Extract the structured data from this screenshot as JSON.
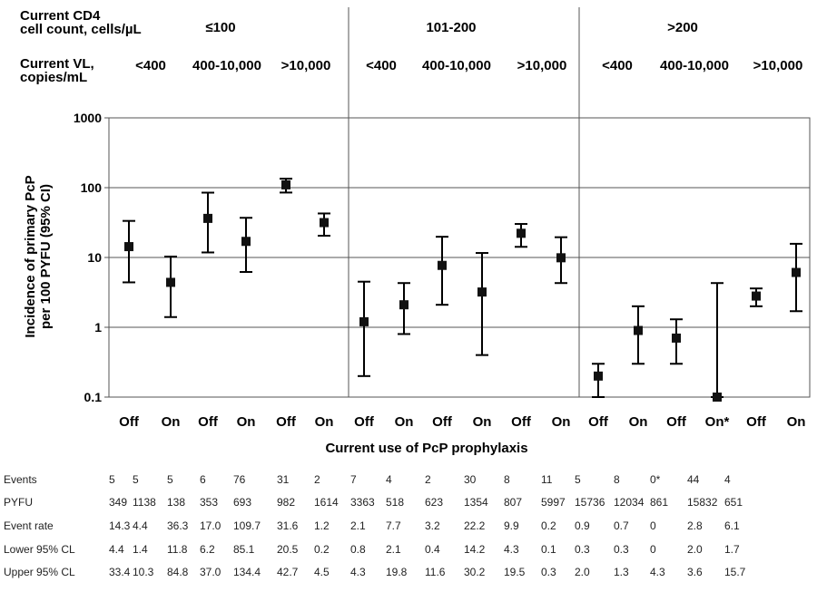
{
  "headers": {
    "cd4_label_line1": "Current CD4",
    "cd4_label_line2": "cell count, cells/µL",
    "vl_label_line1": "Current VL,",
    "vl_label_line2": "copies/mL",
    "cd4_groups": [
      "≤100",
      "101-200",
      ">200"
    ],
    "vl_groups": [
      "<400",
      "400-10,000",
      ">10,000",
      "<400",
      "400-10,000",
      ">10,000",
      "<400",
      "400-10,000",
      ">10,000"
    ]
  },
  "chart_data": {
    "type": "scatter",
    "title": "",
    "ylabel_line1": "Incidence of primary PcP",
    "ylabel_line2": "per 100 PYFU (95% CI)",
    "xlabel": "Current use of PcP prophylaxis",
    "yscale": "log",
    "ylim": [
      0.1,
      1000
    ],
    "yticks": [
      "1000",
      "100",
      "10",
      "1",
      "0.1"
    ],
    "ytick_values": [
      1000,
      100,
      10,
      1,
      0.1
    ],
    "grid": true,
    "categories": [
      "Off",
      "On",
      "Off",
      "On",
      "Off",
      "On",
      "Off",
      "On",
      "Off",
      "On",
      "Off",
      "On",
      "Off",
      "On",
      "Off",
      "On*",
      "Off",
      "On"
    ],
    "values": [
      14.3,
      4.4,
      36.3,
      17.0,
      109.7,
      31.6,
      1.2,
      2.1,
      7.7,
      3.2,
      22.2,
      9.9,
      0.2,
      0.9,
      0.7,
      0.1,
      2.8,
      6.1
    ],
    "lower": [
      4.4,
      1.4,
      11.8,
      6.2,
      85.1,
      20.5,
      0.2,
      0.8,
      2.1,
      0.4,
      14.2,
      4.3,
      0.1,
      0.3,
      0.3,
      0.1,
      2.0,
      1.7
    ],
    "upper": [
      33.4,
      10.3,
      84.8,
      37.0,
      134.4,
      42.7,
      4.5,
      4.3,
      19.8,
      11.6,
      30.2,
      19.5,
      0.3,
      2.0,
      1.3,
      4.3,
      3.6,
      15.7
    ]
  },
  "table": {
    "rows": [
      {
        "label": "Events",
        "values": [
          "5",
          "5",
          "5",
          "6",
          "76",
          "31",
          "2",
          "7",
          "4",
          "2",
          "30",
          "8",
          "11",
          "5",
          "8",
          "0*",
          "44",
          "4"
        ]
      },
      {
        "label": "PYFU",
        "values": [
          "349",
          "1138",
          "138",
          "353",
          "693",
          "982",
          "1614",
          "3363",
          "518",
          "623",
          "1354",
          "807",
          "5997",
          "15736",
          "12034",
          "861",
          "15832",
          "651"
        ]
      },
      {
        "label": "Event rate",
        "values": [
          "14.3",
          "4.4",
          "36.3",
          "17.0",
          "109.7",
          "31.6",
          "1.2",
          "2.1",
          "7.7",
          "3.2",
          "22.2",
          "9.9",
          "0.2",
          "0.9",
          "0.7",
          "0",
          "2.8",
          "6.1"
        ]
      },
      {
        "label": "Lower 95% CL",
        "values": [
          "4.4",
          "1.4",
          "11.8",
          "6.2",
          "85.1",
          "20.5",
          "0.2",
          "0.8",
          "2.1",
          "0.4",
          "14.2",
          "4.3",
          "0.1",
          "0.3",
          "0.3",
          "0",
          "2.0",
          "1.7"
        ]
      },
      {
        "label": "Upper 95% CL",
        "values": [
          "33.4",
          "10.3",
          "84.8",
          "37.0",
          "134.4",
          "42.7",
          "4.5",
          "4.3",
          "19.8",
          "11.6",
          "30.2",
          "19.5",
          "0.3",
          "2.0",
          "1.3",
          "4.3",
          "3.6",
          "15.7"
        ]
      }
    ]
  }
}
